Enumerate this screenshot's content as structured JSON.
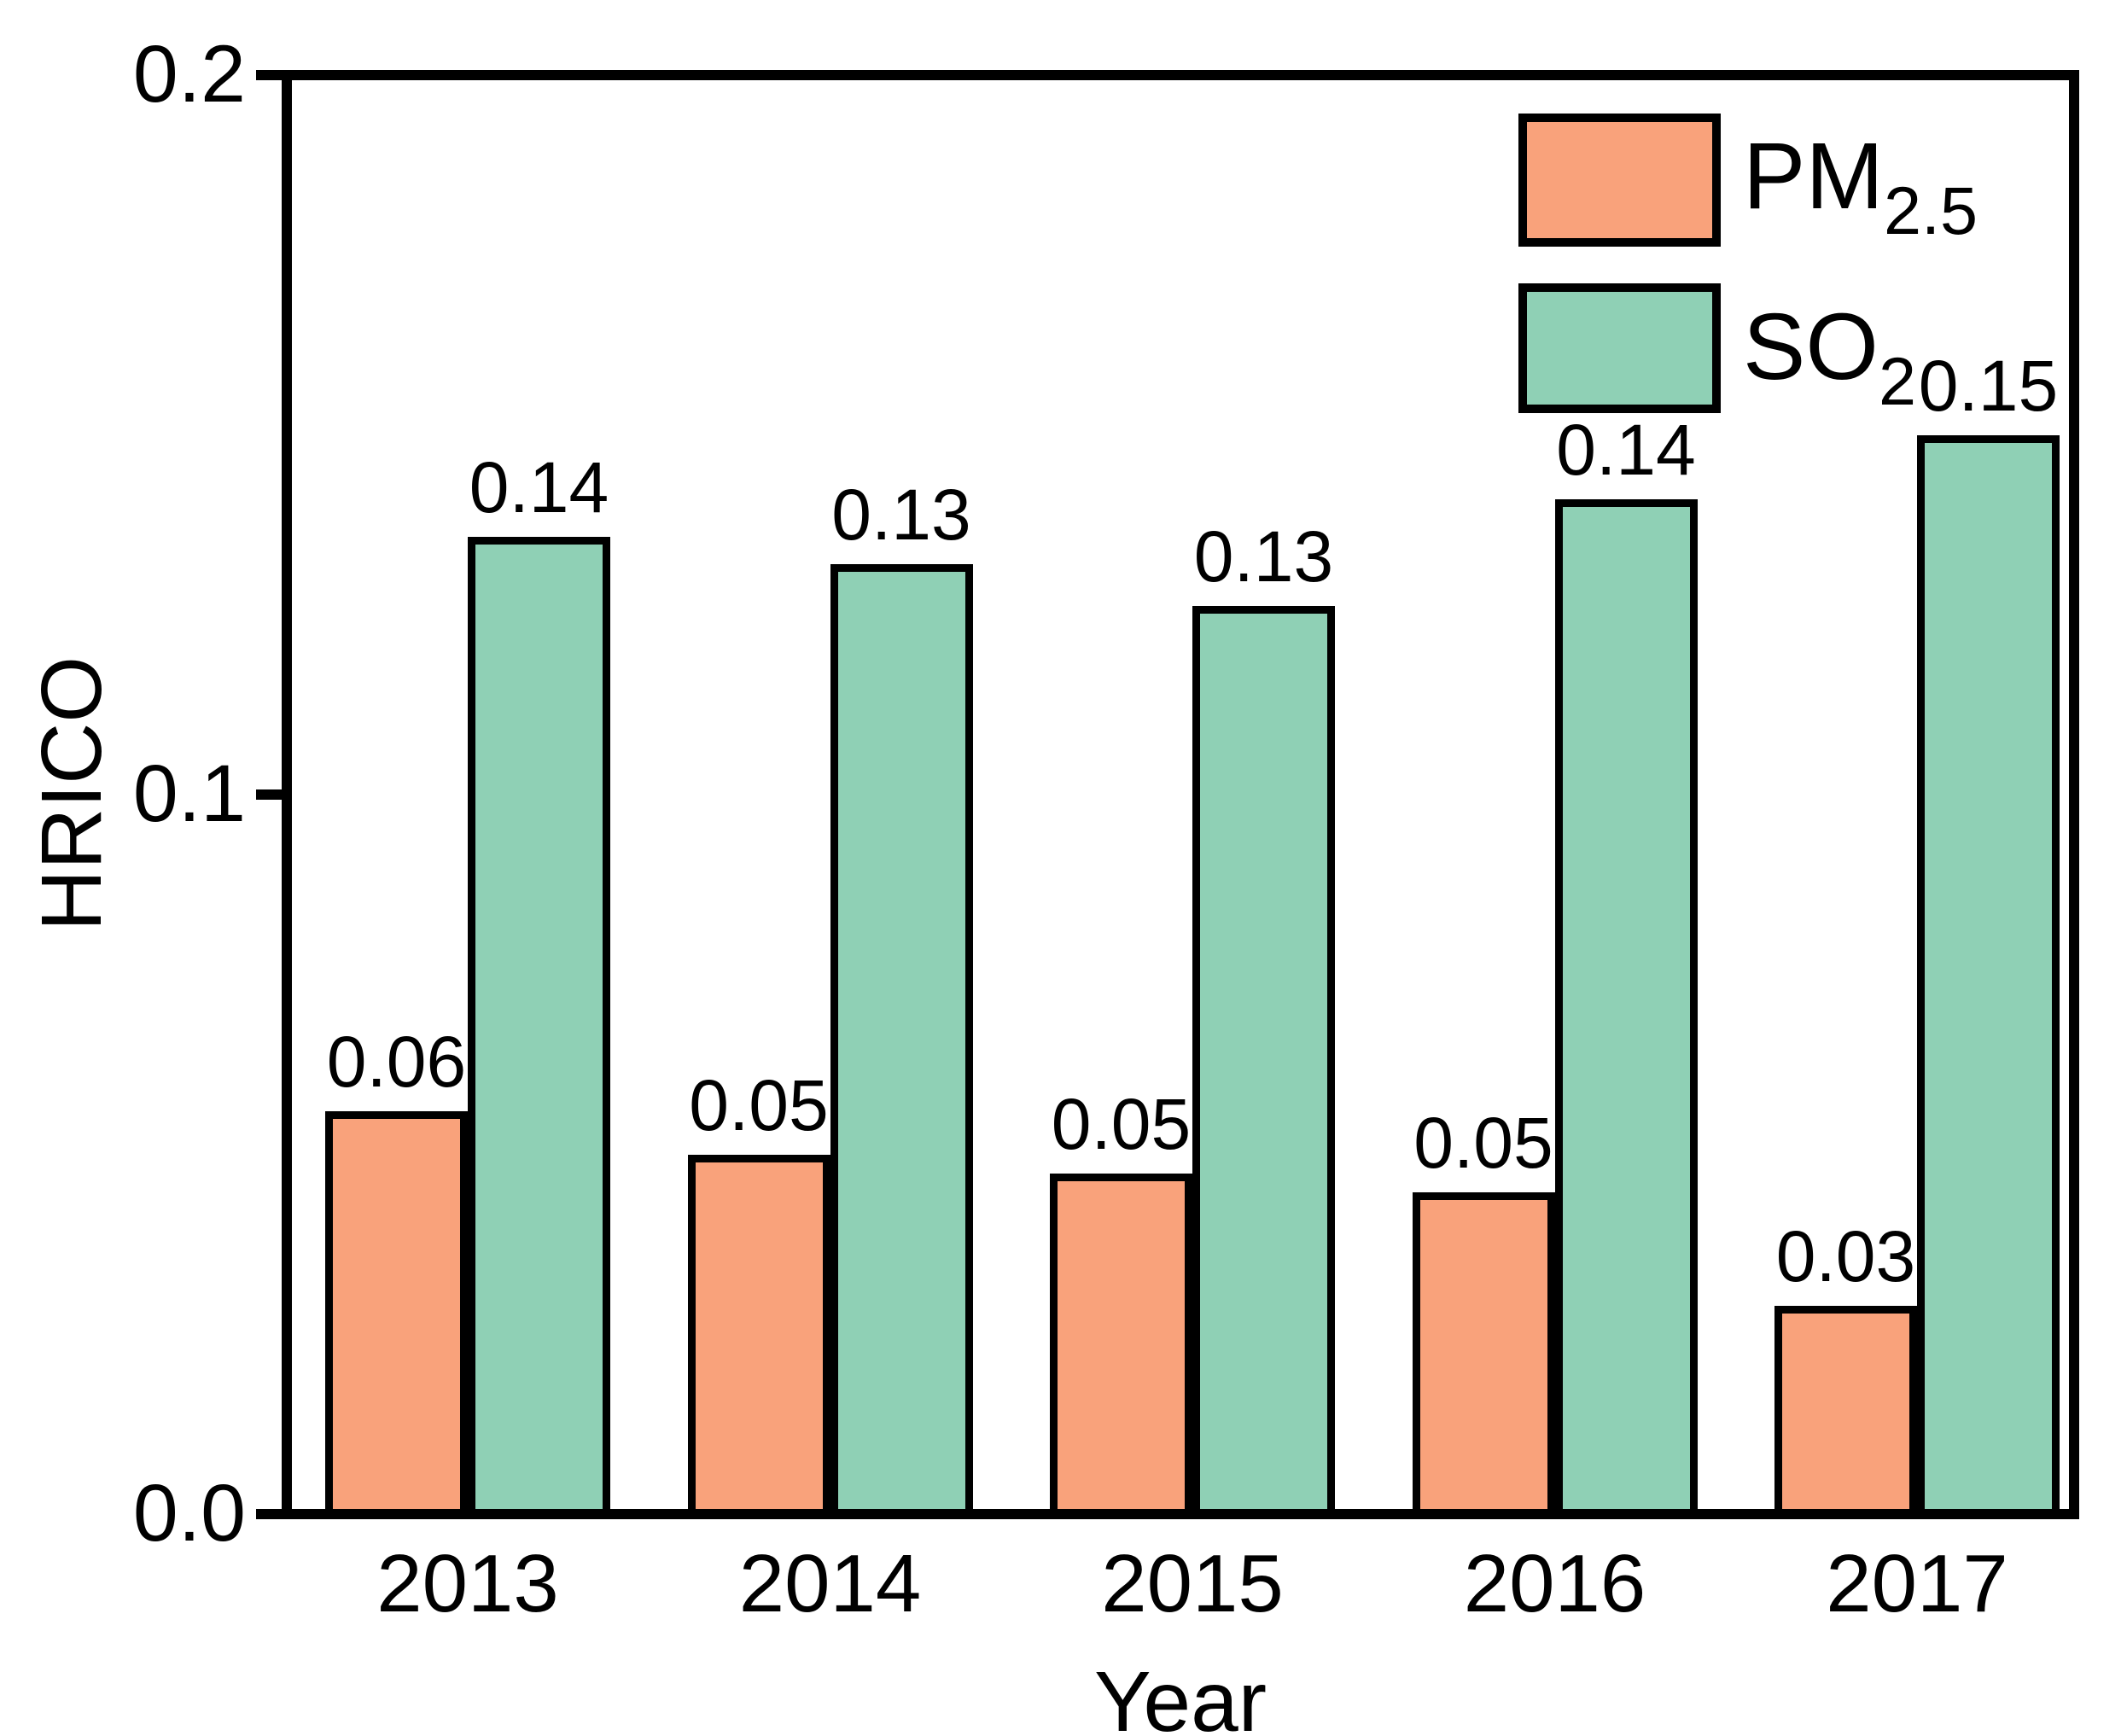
{
  "chart_data": {
    "type": "bar",
    "title": "",
    "xlabel": "Year",
    "ylabel": "HRICO",
    "categories": [
      "2013",
      "2014",
      "2015",
      "2016",
      "2017"
    ],
    "series": [
      {
        "name": "PM2.5",
        "name_base": "PM",
        "name_sub": "2.5",
        "color": "#F9A27B",
        "values": [
          0.06,
          0.05,
          0.05,
          0.05,
          0.03
        ],
        "values_exact": [
          0.056,
          0.05,
          0.0473,
          0.0447,
          0.029
        ],
        "labels": [
          "0.06",
          "0.05",
          "0.05",
          "0.05",
          "0.03"
        ]
      },
      {
        "name": "SO2",
        "name_base": "SO",
        "name_sub": "2",
        "color": "#8FD0B5",
        "values": [
          0.14,
          0.13,
          0.13,
          0.14,
          0.15
        ],
        "values_exact": [
          0.1358,
          0.132,
          0.1262,
          0.141,
          0.15
        ],
        "labels": [
          "0.14",
          "0.13",
          "0.13",
          "0.14",
          "0.15"
        ]
      }
    ],
    "ylim": [
      0,
      0.2
    ],
    "yticks": [
      "0.0",
      "0.1",
      "0.2"
    ],
    "ytick_values": [
      0,
      0.1,
      0.2
    ],
    "grid": false,
    "legend_position": "top-right",
    "bar_border_color": "#000000",
    "axis_color": "#000000",
    "background_color": "#FFFFFF"
  }
}
